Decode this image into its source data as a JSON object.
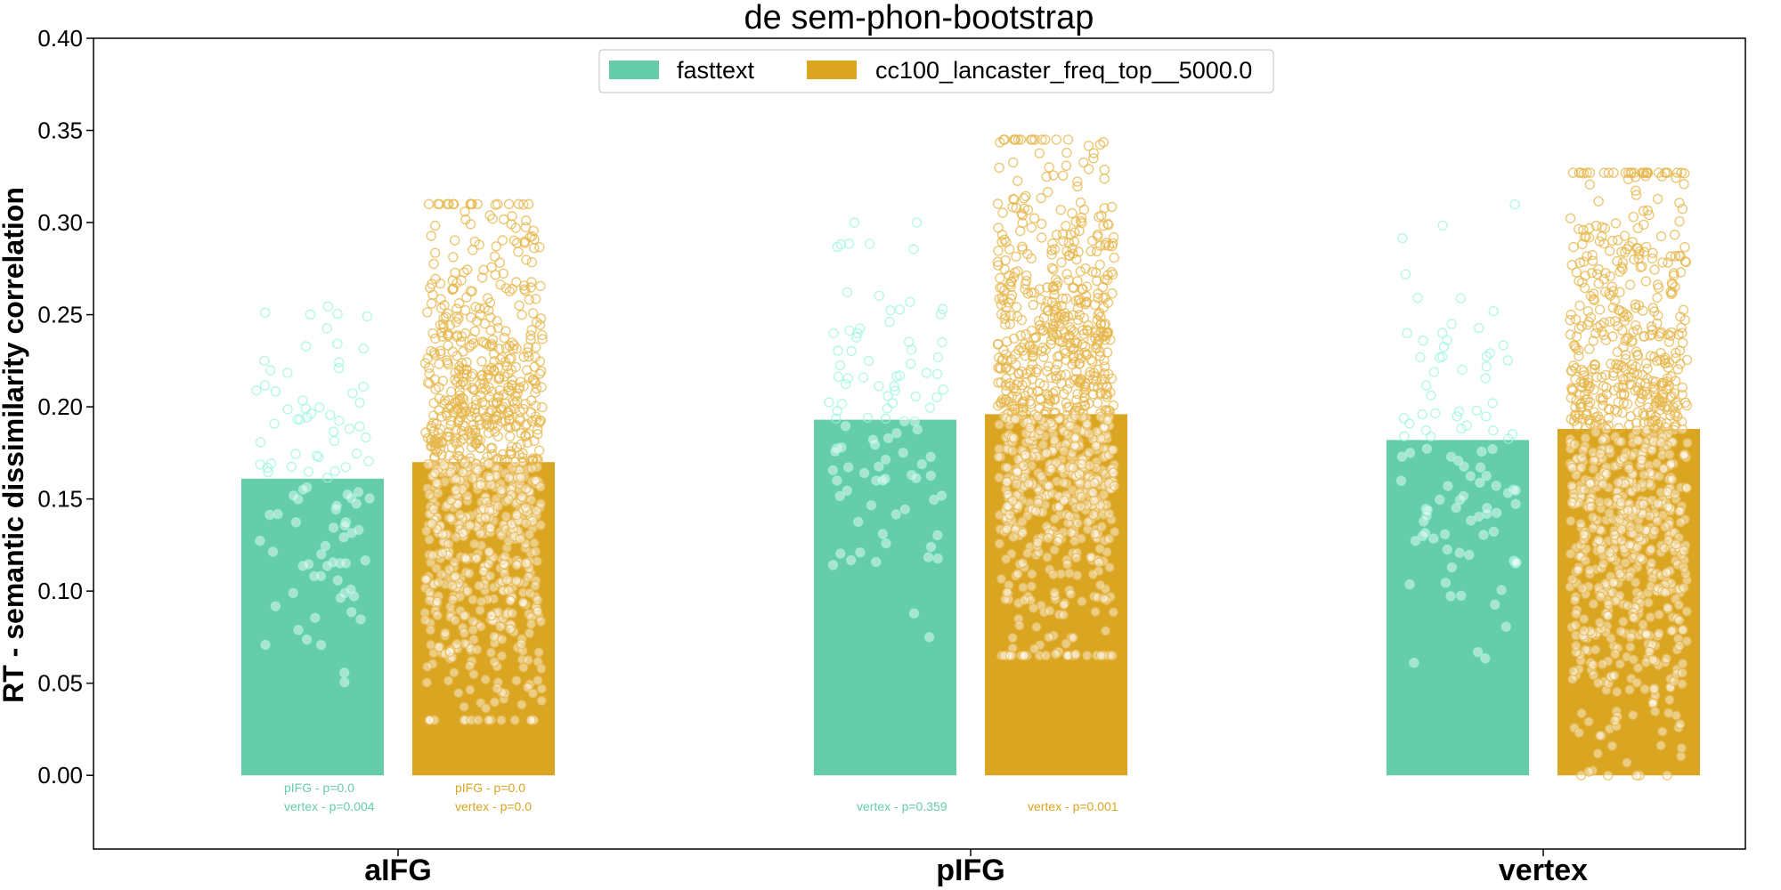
{
  "chart_data": {
    "type": "bar",
    "title": "de sem-phon-bootstrap",
    "xlabel": "",
    "ylabel": "RT - semantic dissimilarity correlation",
    "ylim": [
      -0.04,
      0.4
    ],
    "yticks": [
      "0.00",
      "0.05",
      "0.10",
      "0.15",
      "0.20",
      "0.25",
      "0.30",
      "0.35",
      "0.40"
    ],
    "categories": [
      "aIFG",
      "pIFG",
      "vertex"
    ],
    "grid": false,
    "legend_position": "top-center",
    "series": [
      {
        "name": "fasttext",
        "color": "#66cdaa",
        "values": [
          0.161,
          0.193,
          0.182
        ],
        "annotations": [
          [
            "pIFG - p=0.0",
            "vertex - p=0.004"
          ],
          [
            "vertex - p=0.359"
          ],
          []
        ],
        "scatter": {
          "count_per_bar": 100,
          "ranges": [
            [
              0.04,
              0.285
            ],
            [
              0.075,
              0.3
            ],
            [
              0.048,
              0.31
            ]
          ]
        }
      },
      {
        "name": "cc100_lancaster_freq_top__5000.0",
        "color": "#daa520",
        "values": [
          0.17,
          0.196,
          0.188
        ],
        "annotations": [
          [
            "pIFG - p=0.0",
            "vertex - p=0.0"
          ],
          [
            "vertex - p=0.001"
          ],
          []
        ],
        "scatter": {
          "count_per_bar": 1000,
          "ranges": [
            [
              0.03,
              0.31
            ],
            [
              0.065,
              0.345
            ],
            [
              0.0,
              0.327
            ]
          ]
        }
      }
    ]
  }
}
